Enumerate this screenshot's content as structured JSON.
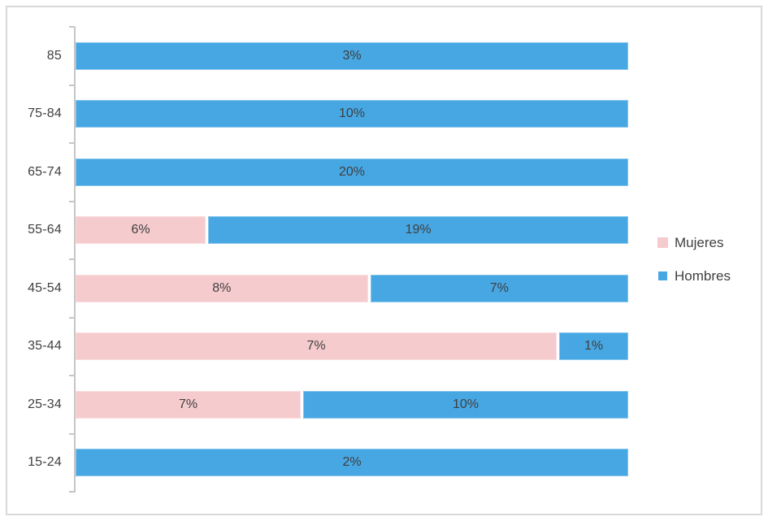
{
  "chart_data": {
    "type": "bar",
    "subtype": "stacked-100-percent",
    "orientation": "horizontal",
    "title": "",
    "xlabel": "",
    "ylabel": "",
    "grid": false,
    "categories": [
      "85",
      "75-84",
      "65-74",
      "55-64",
      "45-54",
      "35-44",
      "25-34",
      "15-24"
    ],
    "series": [
      {
        "name": "Mujeres",
        "color": "#F6CBCE",
        "values": [
          0,
          0,
          0,
          6,
          8,
          7,
          7,
          0
        ],
        "labels": [
          "",
          "",
          "",
          "6%",
          "8%",
          "7%",
          "7%",
          ""
        ]
      },
      {
        "name": "Hombres",
        "color": "#47A7E3",
        "values": [
          3,
          10,
          20,
          19,
          7,
          1,
          10,
          2
        ],
        "labels": [
          "3%",
          "10%",
          "20%",
          "19%",
          "7%",
          "1%",
          "10%",
          "2%"
        ]
      }
    ],
    "legend": {
      "position": "right",
      "entries": [
        "Mujeres",
        "Hombres"
      ]
    },
    "axis": {
      "line_color": "#C6C6C6",
      "tick_count": 9
    },
    "label_color": "#3F3F3F",
    "border_color": "#D9D9D9"
  }
}
